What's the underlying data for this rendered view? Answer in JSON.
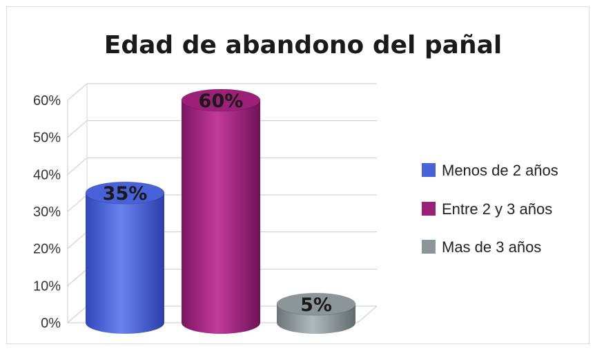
{
  "chart_data": {
    "type": "bar",
    "title": "Edad de abandono del pañal",
    "categories": [
      "Menos de 2 años",
      "Entre 2 y 3 años",
      "Mas de 3 años"
    ],
    "values": [
      35,
      60,
      5
    ],
    "data_labels": [
      "35%",
      "60%",
      "5%"
    ],
    "colors": [
      "#4a62d9",
      "#9c1f78",
      "#8c9698"
    ],
    "yticks": [
      "0%",
      "10%",
      "20%",
      "30%",
      "40%",
      "50%",
      "60%"
    ],
    "ylim": [
      0,
      60
    ],
    "grid": true,
    "legend_position": "right",
    "style": "3d-cylinder"
  }
}
